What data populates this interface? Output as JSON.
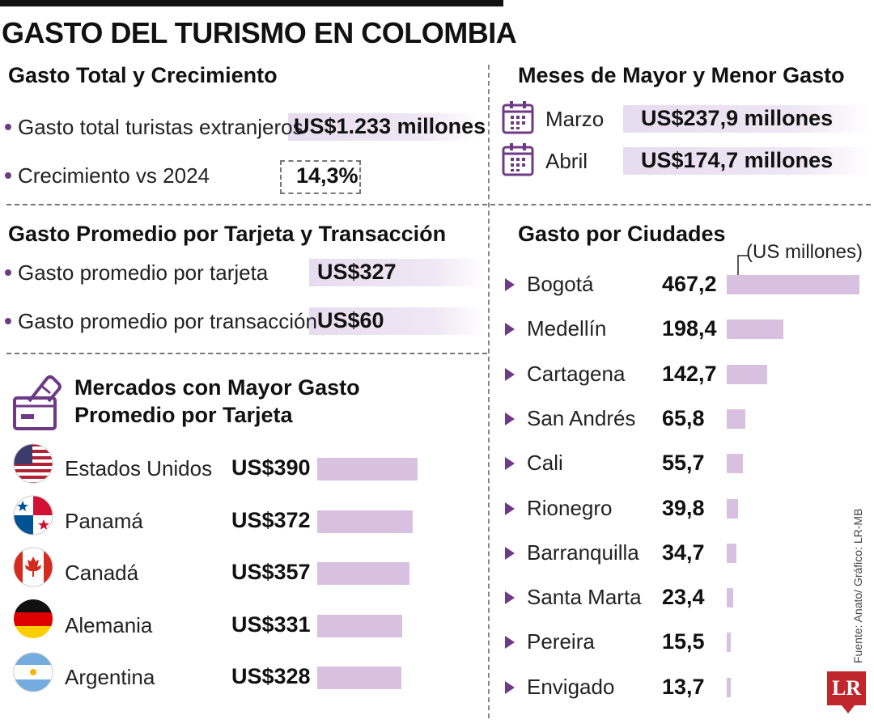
{
  "title": "GASTO DEL TURISMO EN COLOMBIA",
  "colors": {
    "accent": "#6e3a86",
    "bar": "#d8c1e0",
    "highlight": "#e7dcef",
    "logo": "#c0262b"
  },
  "gasto_total": {
    "title": "Gasto Total y Crecimiento",
    "rows": [
      {
        "label": "Gasto total turistas extranjeros",
        "value": "US$1.233 millones"
      },
      {
        "label": "Crecimiento vs 2024",
        "value": "14,3%"
      }
    ]
  },
  "meses": {
    "title": "Meses de Mayor y Menor Gasto",
    "icon": "calendar-icon",
    "rows": [
      {
        "month": "Marzo",
        "value": "US$237,9 millones"
      },
      {
        "month": "Abril",
        "value": "US$174,7 millones"
      }
    ]
  },
  "promedio": {
    "title": "Gasto Promedio por Tarjeta y Transacción",
    "rows": [
      {
        "label": "Gasto promedio por tarjeta",
        "value": "US$327"
      },
      {
        "label": "Gasto promedio por transacción",
        "value": "US$60"
      }
    ]
  },
  "source": "Fuente: Anato/ Gráfico: LR-MB",
  "logo": "LR",
  "chart_data": [
    {
      "type": "bar",
      "orientation": "horizontal",
      "title": "Mercados con Mayor Gasto Promedio por Tarjeta",
      "icon": "credit-card-hand-icon",
      "categories": [
        "Estados Unidos",
        "Panamá",
        "Canadá",
        "Alemania",
        "Argentina"
      ],
      "values": [
        390,
        372,
        357,
        331,
        328
      ],
      "value_labels": [
        "US$390",
        "US$372",
        "US$357",
        "US$331",
        "US$328"
      ],
      "flags": [
        "us-flag-icon",
        "panama-flag-icon",
        "canada-flag-icon",
        "germany-flag-icon",
        "argentina-flag-icon"
      ],
      "unit": "US$",
      "xlim": [
        0,
        390
      ]
    },
    {
      "type": "bar",
      "orientation": "horizontal",
      "title": "Gasto por Ciudades",
      "units_label": "(US millones)",
      "categories": [
        "Bogotá",
        "Medellín",
        "Cartagena",
        "San Andrés",
        "Cali",
        "Rionegro",
        "Barranquilla",
        "Santa Marta",
        "Pereira",
        "Envigado"
      ],
      "values": [
        467.2,
        198.4,
        142.7,
        65.8,
        55.7,
        39.8,
        34.7,
        23.4,
        15.5,
        13.7
      ],
      "value_labels": [
        "467,2",
        "198,4",
        "142,7",
        "65,8",
        "55,7",
        "39,8",
        "34,7",
        "23,4",
        "15,5",
        "13,7"
      ],
      "xlim": [
        0,
        467.2
      ]
    }
  ]
}
